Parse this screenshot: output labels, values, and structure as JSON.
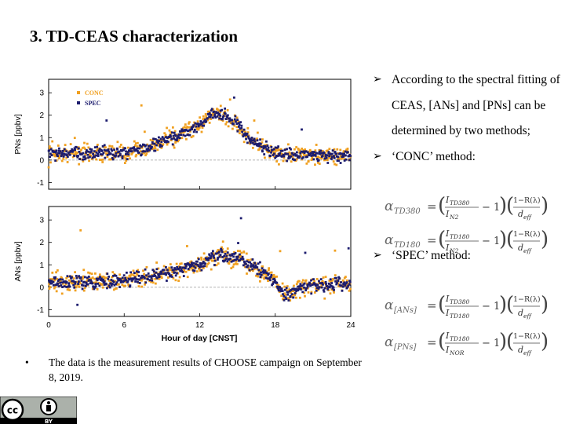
{
  "slide": {
    "title": "3. TD-CEAS characterization",
    "bullets": [
      "According to the spectral fitting of CEAS, [ANs] and [PNs] can be determined by two methods;",
      "‘CONC’ method:",
      "‘SPEC’ method:"
    ],
    "note": "The data is the measurement results of CHOOSE campaign on September 8, 2019."
  },
  "equations": {
    "conc_380": {
      "lhs": "α",
      "sub": "TD380",
      "num": "I_TD380",
      "den": "I_N2",
      "factor_num": "1−R(λ)",
      "factor_den": "d_eff"
    },
    "conc_180": {
      "lhs": "α",
      "sub": "TD180",
      "num": "I_TD180",
      "den": "I_N2",
      "factor_num": "1−R(λ)",
      "factor_den": "d_eff"
    },
    "spec_ans": {
      "lhs": "α",
      "sub": "[ANs]",
      "num": "I_TD380",
      "den": "I_TD180",
      "factor_num": "1−R(λ)",
      "factor_den": "d_eff"
    },
    "spec_pns": {
      "lhs": "α",
      "sub": "[PNs]",
      "num": "I_TD180",
      "den": "I_NOR",
      "factor_num": "1−R(λ)",
      "factor_den": "d_eff"
    }
  },
  "chart_data": [
    {
      "type": "scatter",
      "ylabel": "PNs [ppbv]",
      "xlim": [
        0,
        24
      ],
      "ylim": [
        -1.3,
        3.6
      ],
      "y_ticks": [
        -1,
        0,
        1,
        2,
        3
      ],
      "x_ticks": [
        0,
        6,
        12,
        18,
        24
      ],
      "legend_placement": "top-left",
      "series": [
        {
          "name": "CONC",
          "color": "#F0A020"
        },
        {
          "name": "SPEC",
          "color": "#1C1C6E"
        }
      ],
      "profile": {
        "x": [
          0,
          6,
          8,
          10,
          12,
          13,
          14,
          15,
          16,
          18,
          20,
          24
        ],
        "y": [
          0.3,
          0.3,
          0.6,
          1.0,
          1.6,
          2.1,
          2.0,
          1.6,
          0.9,
          0.3,
          0.2,
          0.2
        ]
      },
      "reference_line": 0
    },
    {
      "type": "scatter",
      "ylabel": "ANs [ppbv]",
      "xlabel": "Hour of day [CNST]",
      "xlim": [
        0,
        24
      ],
      "ylim": [
        -1.3,
        3.6
      ],
      "y_ticks": [
        -1,
        0,
        1,
        2,
        3
      ],
      "x_ticks": [
        0,
        6,
        12,
        18,
        24
      ],
      "series": [
        {
          "name": "CONC",
          "color": "#F0A020"
        },
        {
          "name": "SPEC",
          "color": "#1C1C6E"
        }
      ],
      "profile": {
        "x": [
          0,
          6,
          9,
          12,
          13,
          14,
          15,
          16,
          17,
          18,
          19,
          20,
          24
        ],
        "y": [
          0.2,
          0.3,
          0.6,
          1.0,
          1.3,
          1.4,
          1.3,
          1.0,
          0.7,
          0.3,
          -0.4,
          0.0,
          0.2
        ]
      },
      "reference_line": 0
    }
  ],
  "logo": {
    "text": "BY",
    "colors": {
      "bg": "#ABB1AA",
      "dark": "#000000",
      "light": "#ffffff"
    }
  }
}
